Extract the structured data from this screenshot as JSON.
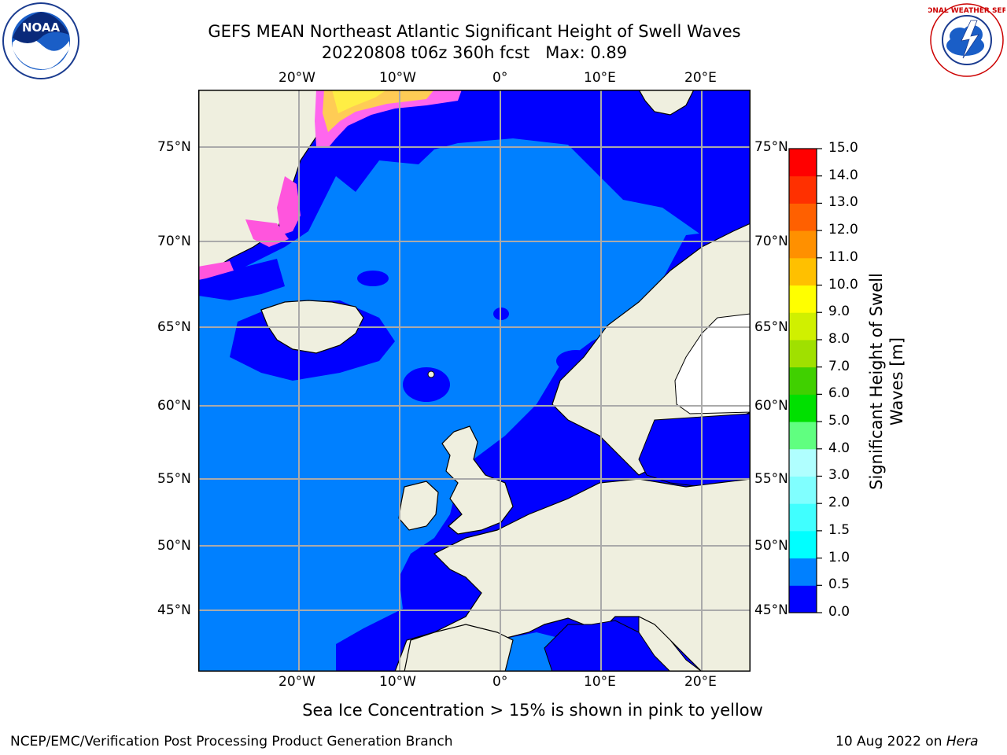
{
  "header": {
    "title_line1": "GEFS MEAN Northeast Atlantic Significant Height of Swell Waves",
    "title_line2": "20220808 t06z 360h fcst   Max: 0.89"
  },
  "logos": {
    "left": {
      "icon": "noaa-logo",
      "text": "NOAA"
    },
    "right": {
      "icon": "nws-logo",
      "text": "NATIONAL WEATHER SERVICE"
    }
  },
  "map": {
    "lon_ticks": [
      "20°W",
      "10°W",
      "0°",
      "10°E",
      "20°E"
    ],
    "lat_ticks": [
      "75°N",
      "70°N",
      "65°N",
      "60°N",
      "55°N",
      "50°N",
      "45°N"
    ],
    "colors": {
      "ocean_0_0.5": "#0000ff",
      "ocean_0.5_1.0": "#0080ff",
      "land": "#efefdf",
      "ice_pink": "#ff44dd",
      "ice_yellow": "#ffee44",
      "grid": "#aaaaaa"
    }
  },
  "colorbar": {
    "label": "Significant Height of Swell\nWaves [m]",
    "ticks": [
      "15.0",
      "14.0",
      "13.0",
      "12.0",
      "11.0",
      "10.0",
      "9.0",
      "8.0",
      "7.0",
      "6.0",
      "5.0",
      "4.0",
      "3.0",
      "2.0",
      "1.5",
      "1.0",
      "0.5",
      "0.0"
    ],
    "levels": [
      0.0,
      0.5,
      1.0,
      1.5,
      2.0,
      3.0,
      4.0,
      5.0,
      6.0,
      7.0,
      8.0,
      9.0,
      10.0,
      11.0,
      12.0,
      13.0,
      14.0,
      15.0
    ],
    "colors": [
      "#0000ff",
      "#0080ff",
      "#00ffff",
      "#40ffff",
      "#80ffff",
      "#b0ffff",
      "#60ff80",
      "#00e000",
      "#40d000",
      "#a0e000",
      "#d0f000",
      "#ffff00",
      "#ffc000",
      "#ff9000",
      "#ff6000",
      "#ff3000",
      "#ff0000"
    ]
  },
  "footer": {
    "note": "Sea Ice Concentration > 15% is shown in pink to yellow",
    "credit": "NCEP/EMC/Verification Post Processing Product Generation Branch",
    "date": "10 Aug 2022 on ",
    "host": "Hera"
  }
}
